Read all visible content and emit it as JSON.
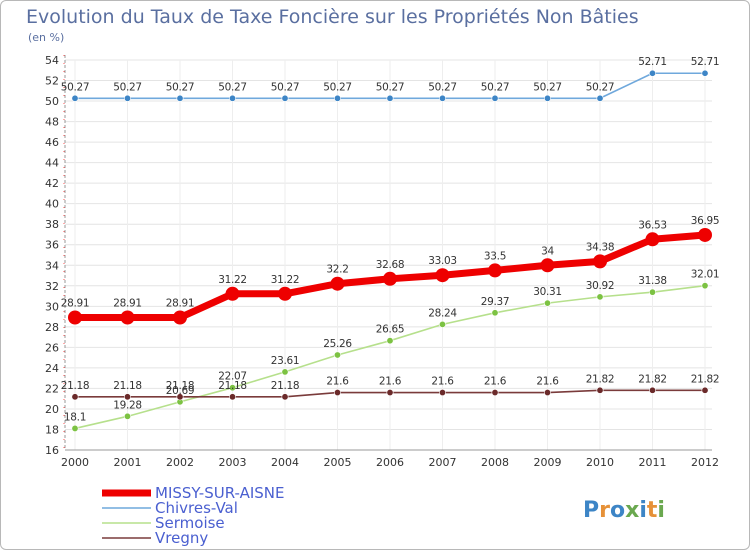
{
  "chart_data": {
    "type": "line",
    "title": "Evolution du Taux de Taxe Foncière sur les Propriétés Non Bâties",
    "ylabel": "(en %)",
    "xlabel": "",
    "x": [
      "2000",
      "2001",
      "2002",
      "2003",
      "2004",
      "2005",
      "2006",
      "2007",
      "2008",
      "2009",
      "2010",
      "2011",
      "2012"
    ],
    "ylim": [
      16,
      54
    ],
    "yticks": [
      16,
      18,
      20,
      22,
      24,
      26,
      28,
      30,
      32,
      34,
      36,
      38,
      40,
      42,
      44,
      46,
      48,
      50,
      52,
      54
    ],
    "grid": true,
    "legend_position": "bottom-left",
    "series": [
      {
        "name": "MISSY-SUR-AISNE",
        "color": "#ee0000",
        "emphasis": true,
        "values": [
          28.91,
          28.91,
          28.91,
          31.22,
          31.22,
          32.2,
          32.68,
          33.03,
          33.5,
          34,
          34.38,
          36.53,
          36.95
        ],
        "labels": [
          "28.91",
          "28.91",
          "28.91",
          "31.22",
          "31.22",
          "32.2",
          "32.68",
          "33.03",
          "33.5",
          "34",
          "34.38",
          "36.53",
          "36.95"
        ]
      },
      {
        "name": "Chivres-Val",
        "color": "#6fa8dc",
        "marker_color": "#3d85c6",
        "values": [
          50.27,
          50.27,
          50.27,
          50.27,
          50.27,
          50.27,
          50.27,
          50.27,
          50.27,
          50.27,
          50.27,
          52.71,
          52.71
        ],
        "labels": [
          "50.27",
          "50.27",
          "50.27",
          "50.27",
          "50.27",
          "50.27",
          "50.27",
          "50.27",
          "50.27",
          "50.27",
          "50.27",
          "52.71",
          "52.71"
        ]
      },
      {
        "name": "Sermoise",
        "color": "#b6e08c",
        "marker_color": "#7cc242",
        "values": [
          18.1,
          19.28,
          20.69,
          22.07,
          23.61,
          25.26,
          26.65,
          28.24,
          29.37,
          30.31,
          30.92,
          31.38,
          32.01
        ],
        "labels": [
          "18.1",
          "19.28",
          "20.69",
          "22.07",
          "23.61",
          "25.26",
          "26.65",
          "28.24",
          "29.37",
          "30.31",
          "30.92",
          "31.38",
          "32.01"
        ]
      },
      {
        "name": "Vregny",
        "color": "#7a3b3b",
        "marker_color": "#6b2a2a",
        "values": [
          21.18,
          21.18,
          21.18,
          21.18,
          21.18,
          21.6,
          21.6,
          21.6,
          21.6,
          21.6,
          21.82,
          21.82,
          21.82
        ],
        "labels": [
          "21.18",
          "21.18",
          "21.18",
          "21.18",
          "21.18",
          "21.6",
          "21.6",
          "21.6",
          "21.6",
          "21.6",
          "21.82",
          "21.82",
          "21.82"
        ]
      }
    ]
  },
  "logo": {
    "text": "Proxiti",
    "letter_colors": [
      "#3d85c6",
      "#e69138",
      "#3d85c6",
      "#6aa84f",
      "#3d85c6",
      "#e69138",
      "#6aa84f"
    ]
  }
}
